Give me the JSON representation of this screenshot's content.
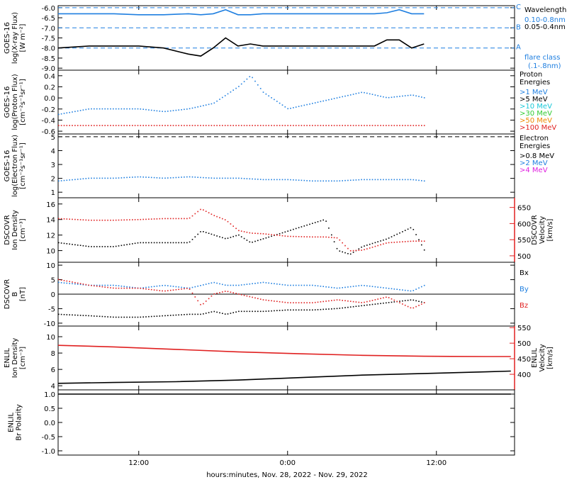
{
  "colors": {
    "black": "#000000",
    "blue": "#1f7fe0",
    "cyan": "#19c8d8",
    "green": "#33cc33",
    "orange": "#ee8800",
    "red": "#e02020",
    "magenta": "#e020e0"
  },
  "footer": {
    "xlabel": "hours:minutes, Nov. 28, 2022 - Nov. 29, 2022"
  },
  "chart_data": [
    {
      "id": "xray",
      "type": "line",
      "ylabel": [
        "GOES-16",
        "log(X-ray Flux)",
        "[W m⁻²]"
      ],
      "ylim": [
        -9.1,
        -5.9
      ],
      "yticks": [
        -9.0,
        -8.5,
        -8.0,
        -7.5,
        -7.0,
        -6.5,
        -6.0
      ],
      "legend_title": "Wavelength",
      "legend": [
        {
          "name": "0.10-0.8nm",
          "color": "blue"
        },
        {
          "name": "0.05-0.4nm",
          "color": "black"
        }
      ],
      "flare_class": {
        "title": "flare class",
        "range": "(.1-.8nm)",
        "levels": [
          {
            "label": "C",
            "value": -6.0
          },
          {
            "label": "B",
            "value": -7.0
          },
          {
            "label": "A",
            "value": -8.0
          }
        ]
      },
      "x": [
        5.5,
        8,
        10,
        12,
        14,
        16,
        17,
        18,
        19,
        20,
        21,
        22,
        24,
        26,
        28,
        30,
        31,
        32,
        33,
        34,
        35
      ],
      "series": [
        {
          "name": "0.10-0.8nm",
          "color": "blue",
          "values": [
            -6.3,
            -6.3,
            -6.3,
            -6.35,
            -6.35,
            -6.3,
            -6.35,
            -6.3,
            -6.1,
            -6.35,
            -6.35,
            -6.3,
            -6.3,
            -6.3,
            -6.3,
            -6.3,
            -6.3,
            -6.25,
            -6.1,
            -6.3,
            -6.3
          ]
        },
        {
          "name": "0.05-0.4nm",
          "color": "black",
          "values": [
            -8.0,
            -7.9,
            -7.9,
            -7.9,
            -8.0,
            -8.3,
            -8.4,
            -8.0,
            -7.5,
            -7.9,
            -7.8,
            -7.9,
            -7.9,
            -7.9,
            -7.9,
            -7.9,
            -7.9,
            -7.6,
            -7.6,
            -8.0,
            -7.8
          ]
        }
      ]
    },
    {
      "id": "proton",
      "type": "scatter",
      "ylabel": [
        "GOES-16",
        "log(Proton Flux)",
        "[cm⁻²s⁻¹sr⁻¹]"
      ],
      "ylim": [
        -0.65,
        0.5
      ],
      "yticks": [
        -0.6,
        -0.4,
        -0.2,
        0.0,
        0.2,
        0.4
      ],
      "legend_title": "Proton Energies",
      "legend": [
        {
          "name": ">1 MeV",
          "color": "blue"
        },
        {
          "name": ">5 MeV",
          "color": "black"
        },
        {
          "name": ">10 MeV",
          "color": "cyan"
        },
        {
          "name": ">30 MeV",
          "color": "green"
        },
        {
          "name": ">50 MeV",
          "color": "orange"
        },
        {
          "name": ">100 MeV",
          "color": "red"
        }
      ],
      "x": [
        5.5,
        8,
        10,
        12,
        14,
        16,
        18,
        20,
        21,
        22,
        24,
        26,
        28,
        30,
        32,
        34,
        35
      ],
      "series": [
        {
          "name": ">1 MeV",
          "color": "blue",
          "values": [
            -0.3,
            -0.2,
            -0.2,
            -0.2,
            -0.25,
            -0.2,
            -0.1,
            0.2,
            0.4,
            0.1,
            -0.2,
            -0.1,
            0.0,
            0.1,
            0.0,
            0.05,
            0.0
          ]
        },
        {
          "name": ">100 MeV",
          "color": "red",
          "values": [
            -0.5,
            -0.5,
            -0.5,
            -0.5,
            -0.5,
            -0.5,
            -0.5,
            -0.5,
            -0.5,
            -0.5,
            -0.5,
            -0.5,
            -0.5,
            -0.5,
            -0.5,
            -0.5,
            -0.5
          ]
        }
      ]
    },
    {
      "id": "electron",
      "type": "scatter",
      "ylabel": [
        "GOES-16",
        "log(Electron Flux)",
        "[cm⁻²s⁻¹sr⁻¹]"
      ],
      "ylim": [
        0.6,
        5.2
      ],
      "yticks": [
        1,
        2,
        3,
        4,
        5
      ],
      "dashed_level": 5.0,
      "legend_title": "Electron Energies",
      "legend": [
        {
          "name": ">0.8 MeV",
          "color": "black"
        },
        {
          "name": ">2 MeV",
          "color": "blue"
        },
        {
          "name": ">4 MeV",
          "color": "magenta"
        }
      ],
      "x": [
        5.5,
        8,
        10,
        12,
        14,
        16,
        18,
        20,
        22,
        24,
        26,
        28,
        30,
        32,
        34,
        35
      ],
      "series": [
        {
          "name": ">2 MeV",
          "color": "blue",
          "values": [
            1.8,
            2.0,
            2.0,
            2.1,
            2.0,
            2.1,
            2.0,
            2.0,
            1.9,
            1.9,
            1.8,
            1.8,
            1.9,
            1.9,
            1.9,
            1.8
          ]
        }
      ]
    },
    {
      "id": "dscovr-plasma",
      "type": "scatter",
      "ylabel": [
        "DSCOVR",
        "Ion Density",
        "[cm⁻³]"
      ],
      "ylim": [
        8.5,
        16.8
      ],
      "yticks": [
        10,
        12,
        14,
        16
      ],
      "y2label": [
        "DSCOVR",
        "Velocity",
        "[km/s]"
      ],
      "y2lim": [
        480,
        680
      ],
      "y2ticks": [
        500,
        550,
        600,
        650
      ],
      "x": [
        5.5,
        8,
        10,
        12,
        14,
        16,
        17,
        18,
        19,
        20,
        21,
        22,
        24,
        26,
        27,
        28,
        29,
        30,
        32,
        34,
        35
      ],
      "series": [
        {
          "name": "Density",
          "color": "black",
          "axis": "left",
          "values": [
            11.0,
            10.5,
            10.5,
            11.0,
            11.0,
            11.0,
            12.5,
            12.0,
            11.5,
            12.0,
            11.0,
            11.5,
            12.5,
            13.5,
            14.0,
            10.0,
            9.5,
            10.5,
            11.5,
            13.0,
            10.0
          ]
        },
        {
          "name": "Velocity",
          "color": "red",
          "axis": "right",
          "values": [
            615,
            610,
            610,
            612,
            615,
            615,
            645,
            625,
            610,
            578,
            570,
            568,
            560,
            558,
            558,
            555,
            515,
            517,
            540,
            545,
            545
          ]
        }
      ]
    },
    {
      "id": "dscovr-mag",
      "type": "scatter",
      "ylabel": [
        "DSCOVR",
        "B",
        "[nT]"
      ],
      "ylim": [
        -11,
        11
      ],
      "yticks": [
        -10,
        -5,
        0,
        5,
        10
      ],
      "zero_line": true,
      "legend": [
        {
          "name": "Bx",
          "color": "black"
        },
        {
          "name": "By",
          "color": "blue"
        },
        {
          "name": "Bz",
          "color": "red"
        }
      ],
      "x": [
        5.5,
        8,
        10,
        12,
        14,
        16,
        17,
        18,
        19,
        20,
        22,
        24,
        26,
        28,
        30,
        32,
        34,
        35
      ],
      "series": [
        {
          "name": "Bx",
          "color": "black",
          "values": [
            -7,
            -7.5,
            -8,
            -8,
            -7.5,
            -7,
            -7,
            -6,
            -7,
            -6,
            -6,
            -5.5,
            -5.5,
            -5,
            -4,
            -3,
            -2,
            -3
          ]
        },
        {
          "name": "By",
          "color": "blue",
          "values": [
            4,
            3,
            3,
            2,
            3,
            2,
            3,
            4,
            3,
            3,
            4,
            3,
            3,
            2,
            3,
            2,
            1,
            3
          ]
        },
        {
          "name": "Bz",
          "color": "red",
          "values": [
            5,
            3,
            2,
            2,
            1,
            2,
            -4,
            0,
            1,
            0,
            -2,
            -3,
            -3,
            -2,
            -3,
            -1,
            -5,
            -3
          ]
        }
      ]
    },
    {
      "id": "enlil-plasma",
      "type": "line",
      "ylabel": [
        "ENLIL",
        "Ion Density",
        "[cm⁻³]"
      ],
      "ylim": [
        3.5,
        11.3
      ],
      "yticks": [
        4,
        6,
        8,
        10
      ],
      "y2label": [
        "ENLIL",
        "Velocity",
        "[km/s]"
      ],
      "y2lim": [
        350,
        555
      ],
      "y2ticks": [
        400,
        450,
        500,
        550
      ],
      "x": [
        5.5,
        10,
        15,
        20,
        25,
        30,
        35,
        40,
        42
      ],
      "series": [
        {
          "name": "Density",
          "color": "black",
          "axis": "left",
          "values": [
            4.3,
            4.4,
            4.5,
            4.7,
            5.0,
            5.3,
            5.5,
            5.7,
            5.8
          ]
        },
        {
          "name": "Velocity",
          "color": "red",
          "axis": "right",
          "values": [
            493,
            488,
            480,
            472,
            466,
            461,
            458,
            457,
            457
          ]
        }
      ]
    },
    {
      "id": "enlil-polarity",
      "type": "line",
      "ylabel": [
        "ENLIL",
        "Br Polarity"
      ],
      "ylim": [
        -1.15,
        1.15
      ],
      "yticks": [
        -1.0,
        -0.5,
        0.0,
        0.5,
        1.0
      ],
      "x": [
        5.5,
        42
      ],
      "series": [
        {
          "name": "Polarity",
          "color": "black",
          "values": [
            1.0,
            1.0
          ]
        }
      ]
    }
  ],
  "time_axis": {
    "xlim": [
      5.5,
      42.3
    ],
    "ticks": [
      {
        "value": 12,
        "label": "12:00"
      },
      {
        "value": 24,
        "label": "0:00"
      },
      {
        "value": 36,
        "label": "12:00"
      }
    ]
  }
}
